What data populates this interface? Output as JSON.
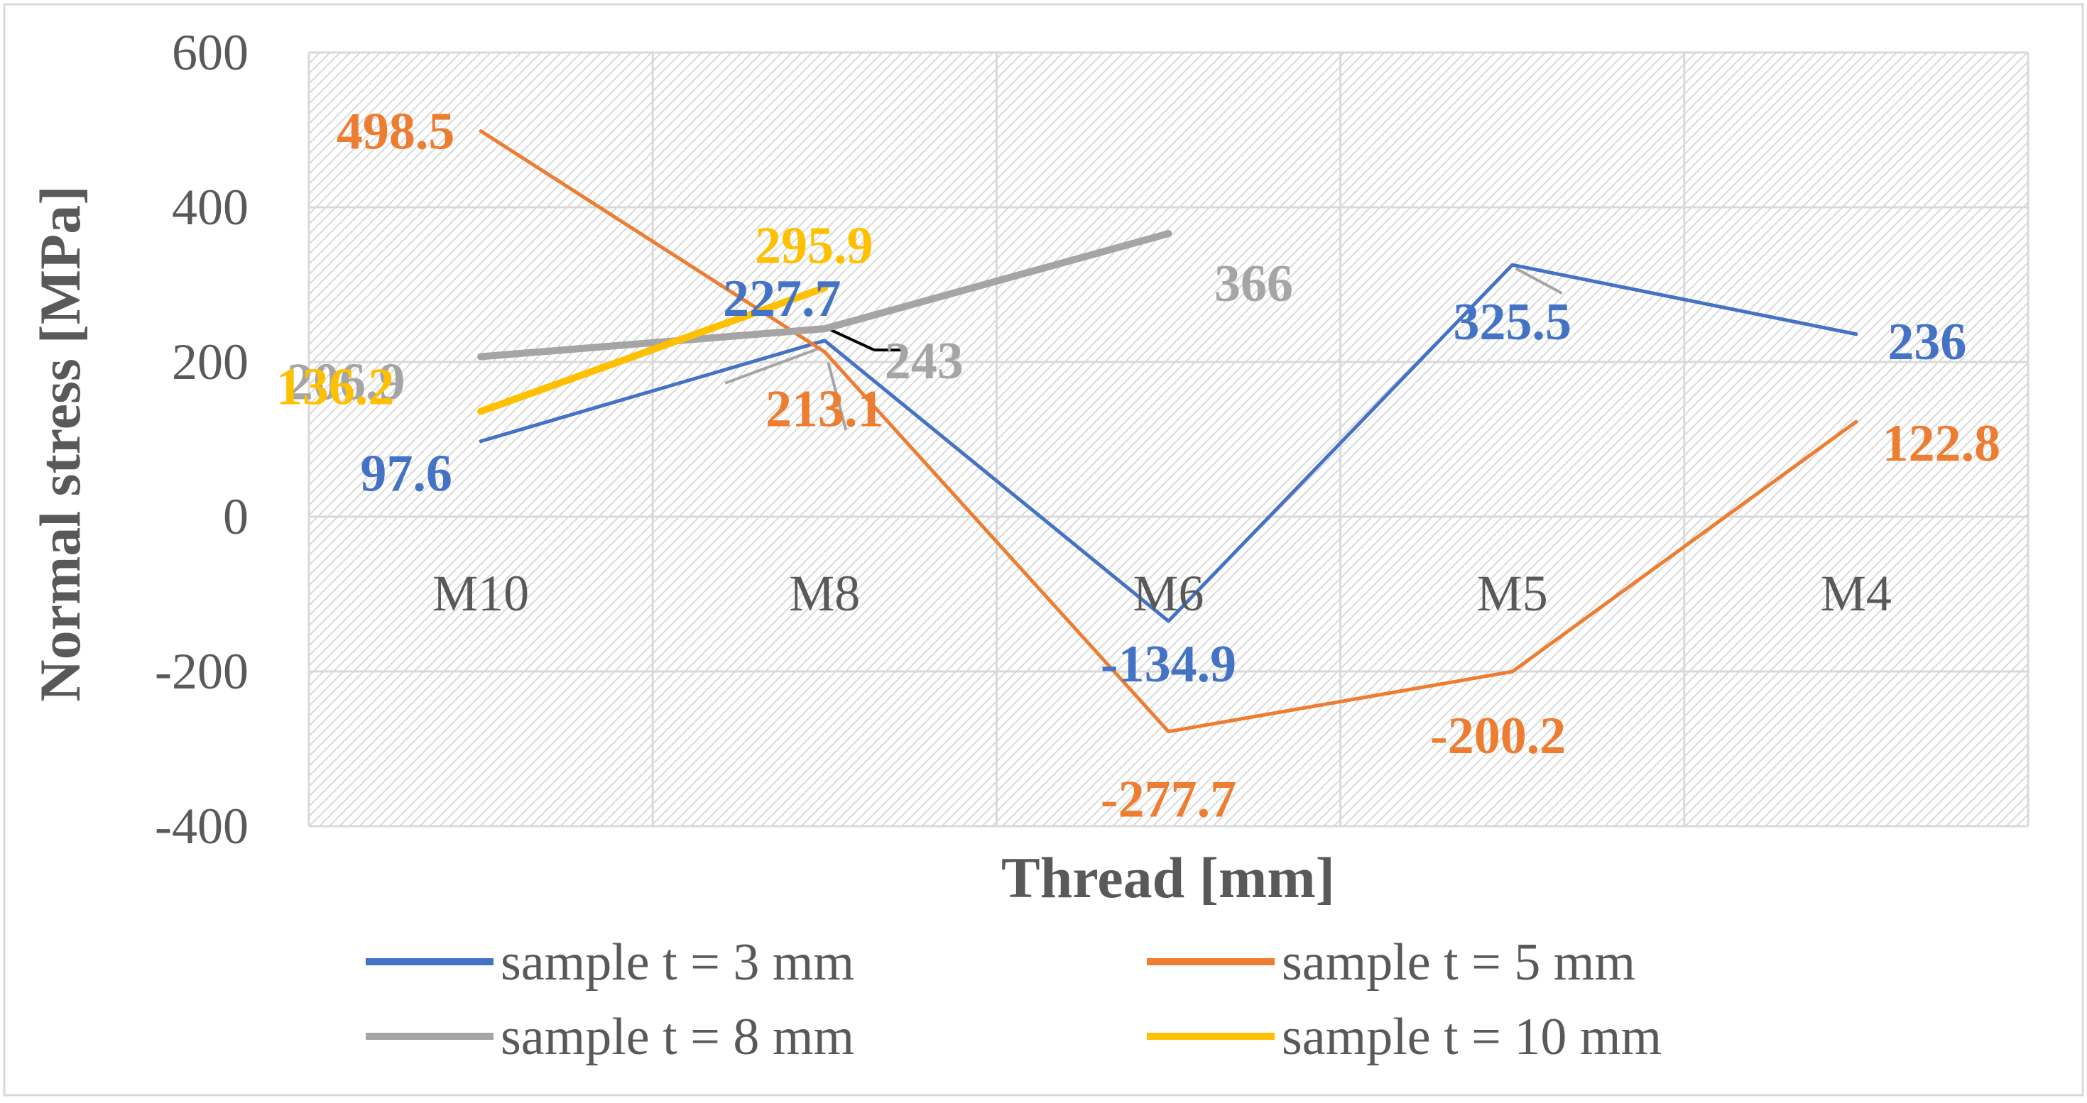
{
  "chart_data": {
    "type": "line",
    "title": "",
    "xlabel": "Thread [mm]",
    "ylabel": "Normal stress [MPa]",
    "categories": [
      "M10",
      "M8",
      "M6",
      "M5",
      "M4"
    ],
    "ylim": [
      -400,
      600
    ],
    "yticks": [
      600,
      400,
      200,
      0,
      -200,
      -400
    ],
    "grid": true,
    "legend_position": "bottom",
    "series": [
      {
        "name": "sample t = 3 mm",
        "color": "#4472C4",
        "values": [
          97.6,
          227.7,
          -134.9,
          325.5,
          236
        ],
        "labels": [
          "97.6",
          "227.7",
          "-134.9",
          "325.5",
          "236"
        ]
      },
      {
        "name": "sample t = 5 mm",
        "color": "#ED7D31",
        "values": [
          498.5,
          213.1,
          -277.7,
          -200.2,
          122.8
        ],
        "labels": [
          "498.5",
          "213.1",
          "-277.7",
          "-200.2",
          "122.8"
        ]
      },
      {
        "name": "sample t = 8 mm",
        "color": "#A5A5A5",
        "values": [
          206.9,
          243,
          366,
          null,
          null
        ],
        "labels": [
          "206.9",
          "243",
          "366",
          "",
          ""
        ]
      },
      {
        "name": "sample t = 10 mm",
        "color": "#FFC000",
        "values": [
          136.2,
          295.9,
          null,
          null,
          null
        ],
        "labels": [
          "136.2",
          "295.9",
          "",
          "",
          ""
        ]
      }
    ]
  }
}
